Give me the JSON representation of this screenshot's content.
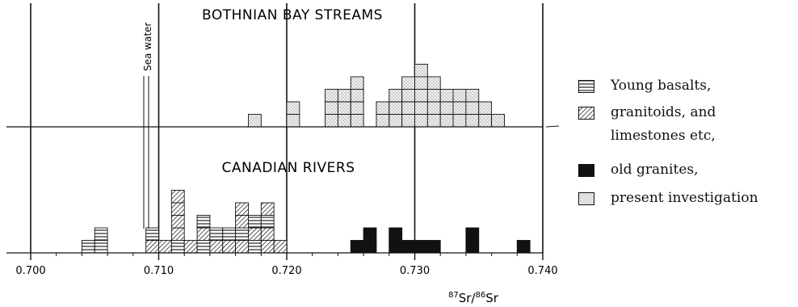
{
  "chart_data": {
    "type": "histogram",
    "xlabel_main": "Sr/",
    "xlabel_sup1": "87",
    "xlabel_sup2": "86",
    "xlabel_tail": "Sr",
    "xlim": [
      0.7,
      0.74
    ],
    "ticks": [
      "0.700",
      "0.710",
      "0.720",
      "0.730",
      "0.740"
    ],
    "sea_water_label": "Sea water",
    "sea_water_value": 0.709,
    "panels": [
      {
        "title": "BOTHNIAN BAY STREAMS",
        "bins": [
          {
            "x": 0.7175,
            "n": 1
          },
          {
            "x": 0.7205,
            "n": 2
          },
          {
            "x": 0.7235,
            "n": 3
          },
          {
            "x": 0.7245,
            "n": 3
          },
          {
            "x": 0.7255,
            "n": 4
          },
          {
            "x": 0.7275,
            "n": 2
          },
          {
            "x": 0.7285,
            "n": 3
          },
          {
            "x": 0.7295,
            "n": 4
          },
          {
            "x": 0.7305,
            "n": 5
          },
          {
            "x": 0.7315,
            "n": 4
          },
          {
            "x": 0.7325,
            "n": 3
          },
          {
            "x": 0.7335,
            "n": 3
          },
          {
            "x": 0.7345,
            "n": 3
          },
          {
            "x": 0.7355,
            "n": 2
          },
          {
            "x": 0.7365,
            "n": 1
          }
        ]
      },
      {
        "title": "CANADIAN RIVERS",
        "bins": [
          {
            "x": 0.7045,
            "stack": [
              "young_basalts"
            ]
          },
          {
            "x": 0.7055,
            "stack": [
              "young_basalts",
              "young_basalts"
            ]
          },
          {
            "x": 0.7095,
            "stack": [
              "granitoids",
              "young_basalts"
            ]
          },
          {
            "x": 0.7105,
            "stack": [
              "granitoids"
            ]
          },
          {
            "x": 0.7115,
            "stack": [
              "young_basalts",
              "granitoids",
              "granitoids",
              "granitoids",
              "granitoids"
            ]
          },
          {
            "x": 0.7125,
            "stack": [
              "granitoids"
            ]
          },
          {
            "x": 0.7135,
            "stack": [
              "young_basalts",
              "granitoids",
              "young_basalts"
            ]
          },
          {
            "x": 0.7145,
            "stack": [
              "granitoids",
              "young_basalts"
            ]
          },
          {
            "x": 0.7155,
            "stack": [
              "granitoids",
              "young_basalts"
            ]
          },
          {
            "x": 0.7165,
            "stack": [
              "granitoids",
              "young_basalts",
              "granitoids",
              "granitoids"
            ]
          },
          {
            "x": 0.7175,
            "stack": [
              "young_basalts",
              "granitoids",
              "young_basalts"
            ]
          },
          {
            "x": 0.7185,
            "stack": [
              "granitoids",
              "granitoids",
              "young_basalts",
              "granitoids"
            ]
          },
          {
            "x": 0.7195,
            "stack": [
              "granitoids"
            ]
          },
          {
            "x": 0.7255,
            "stack": [
              "old_granites"
            ]
          },
          {
            "x": 0.7265,
            "stack": [
              "old_granites",
              "old_granites"
            ]
          },
          {
            "x": 0.7285,
            "stack": [
              "old_granites",
              "old_granites"
            ]
          },
          {
            "x": 0.7295,
            "stack": [
              "old_granites"
            ]
          },
          {
            "x": 0.7305,
            "stack": [
              "old_granites"
            ]
          },
          {
            "x": 0.7315,
            "stack": [
              "old_granites"
            ]
          },
          {
            "x": 0.7345,
            "stack": [
              "old_granites",
              "old_granites"
            ]
          },
          {
            "x": 0.7385,
            "stack": [
              "old_granites"
            ]
          }
        ]
      }
    ],
    "legend": [
      {
        "key": "young_basalts",
        "label": "Young basalts,"
      },
      {
        "key": "granitoids",
        "label": "granitoids, and"
      },
      {
        "key": "granitoids_cont",
        "label": "limestones etc,"
      },
      {
        "key": "old_granites",
        "label": "old granites,"
      },
      {
        "key": "present",
        "label": "present investigation"
      }
    ]
  }
}
